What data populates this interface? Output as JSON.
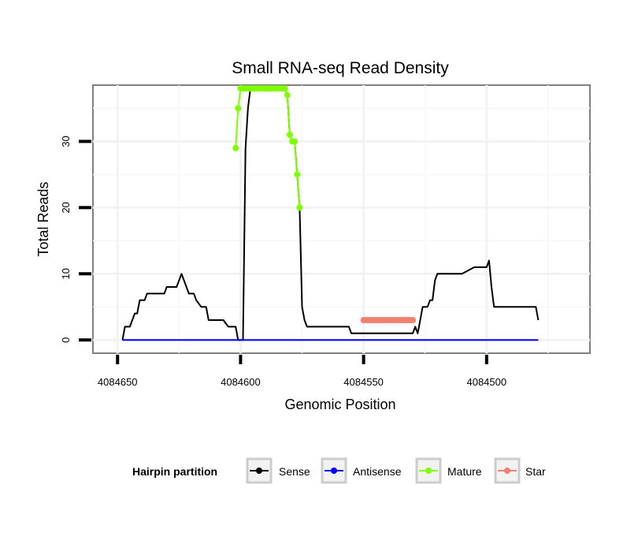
{
  "chart_data": {
    "type": "line",
    "title": "Small RNA-seq Read Density",
    "xlabel": "Genomic Position",
    "ylabel": "Total Reads",
    "xlim": [
      4084660,
      4084458
    ],
    "ylim": [
      -2,
      38.5
    ],
    "x_ticks": [
      4084650,
      4084600,
      4084550,
      4084500
    ],
    "x_tick_labels": [
      "4084650",
      "4084600",
      "4084550",
      "4084500"
    ],
    "y_ticks": [
      0,
      10,
      20,
      30
    ],
    "y_tick_labels": [
      "0",
      "10",
      "20",
      "30"
    ],
    "grid": true,
    "legend": {
      "title": "Hairpin partition",
      "position": "bottom",
      "entries": [
        "Sense",
        "Antisense",
        "Mature",
        "Star"
      ]
    },
    "series": [
      {
        "name": "Sense",
        "color": "#000000",
        "x": [
          4084648,
          4084647,
          4084645,
          4084643,
          4084642,
          4084641,
          4084640,
          4084639,
          4084638,
          4084637,
          4084634,
          4084631,
          4084630,
          4084629,
          4084627,
          4084626,
          4084625,
          4084624,
          4084621,
          4084620,
          4084619,
          4084618,
          4084616,
          4084614,
          4084613,
          4084612,
          4084611,
          4084610,
          4084607,
          4084605,
          4084604,
          4084602,
          4084601,
          4084600,
          4084599,
          4084598,
          4084597,
          4084596,
          4084595,
          4084593,
          4084591,
          4084589,
          4084588,
          4084584,
          4084582,
          4084581,
          4084580,
          4084579,
          4084578,
          4084577,
          4084576,
          4084575,
          4084574,
          4084573,
          4084570,
          4084565,
          4084560,
          4084556,
          4084555,
          4084554,
          4084550,
          4084545,
          4084540,
          4084530,
          4084529,
          4084528,
          4084527,
          4084526,
          4084525,
          4084524,
          4084523,
          4084522,
          4084521,
          4084520,
          4084519,
          4084518,
          4084517,
          4084516,
          4084515,
          4084510,
          4084505,
          4084504,
          4084503,
          4084502,
          4084500,
          4084499,
          4084498,
          4084497,
          4084495,
          4084485,
          4084480,
          4084479
        ],
        "y": [
          0,
          2,
          2,
          4,
          4,
          6,
          6,
          6,
          7,
          7,
          7,
          7,
          8,
          8,
          8,
          8,
          9,
          10,
          7,
          7,
          7,
          6,
          5,
          5,
          3,
          3,
          3,
          3,
          3,
          2,
          2,
          2,
          0,
          0,
          0,
          29,
          35,
          38,
          38,
          38,
          38,
          38,
          38,
          38,
          38,
          37,
          31,
          30,
          30,
          25,
          20,
          5,
          3,
          2,
          2,
          2,
          2,
          2,
          1,
          1,
          1,
          1,
          1,
          1,
          2,
          1,
          3,
          5,
          5,
          5,
          6,
          6,
          9,
          10,
          10,
          10,
          10,
          10,
          10,
          10,
          11,
          11,
          11,
          11,
          11,
          12,
          8,
          5,
          5,
          5,
          5,
          3
        ]
      },
      {
        "name": "Antisense",
        "color": "#0000ff",
        "x": [
          4084648,
          4084479
        ],
        "y": [
          0,
          0
        ]
      },
      {
        "name": "Mature",
        "color": "#80ff00",
        "x": [
          4084602,
          4084601,
          4084600,
          4084599,
          4084598,
          4084597,
          4084596,
          4084595,
          4084594,
          4084593,
          4084592,
          4084591,
          4084590,
          4084589,
          4084588,
          4084587,
          4084586,
          4084585,
          4084584,
          4084583,
          4084582,
          4084581,
          4084580,
          4084579,
          4084578,
          4084577,
          4084576
        ],
        "y": [
          29,
          35,
          38,
          38,
          38,
          38,
          38,
          38,
          38,
          38,
          38,
          38,
          38,
          38,
          38,
          38,
          38,
          38,
          38,
          38,
          38,
          37,
          31,
          30,
          30,
          25,
          20
        ]
      },
      {
        "name": "Star",
        "color": "#f08070",
        "x": [
          4084550,
          4084549,
          4084548,
          4084547,
          4084546,
          4084545,
          4084544,
          4084543,
          4084542,
          4084541,
          4084540,
          4084539,
          4084538,
          4084537,
          4084536,
          4084535,
          4084534,
          4084533,
          4084532,
          4084531,
          4084530
        ],
        "y": [
          3,
          3,
          3,
          3,
          3,
          3,
          3,
          3,
          3,
          3,
          3,
          3,
          3,
          3,
          3,
          3,
          3,
          3,
          3,
          3,
          3
        ]
      }
    ]
  }
}
